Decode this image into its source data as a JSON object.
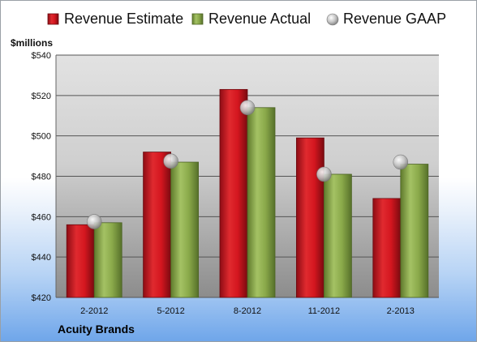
{
  "chart_data": {
    "type": "bar",
    "title": "",
    "ylabel": "$millions",
    "xlabel": "",
    "company": "Acuity Brands",
    "categories": [
      "2-2012",
      "5-2012",
      "8-2012",
      "11-2012",
      "2-2013"
    ],
    "series": [
      {
        "name": "Revenue Estimate",
        "kind": "bar",
        "color": "#c8141e",
        "values": [
          456,
          492,
          523,
          499,
          469
        ]
      },
      {
        "name": "Revenue Actual",
        "kind": "bar",
        "color": "#8aa94a",
        "values": [
          457,
          487,
          514,
          481,
          486
        ]
      },
      {
        "name": "Revenue GAAP",
        "kind": "marker",
        "color": "#b8b8b8",
        "values": [
          457.5,
          487.5,
          514,
          481,
          487
        ]
      }
    ],
    "ylim": [
      420,
      540
    ],
    "yticks": [
      420,
      440,
      460,
      480,
      500,
      520,
      540
    ],
    "ytick_labels": [
      "$420",
      "$440",
      "$460",
      "$480",
      "$500",
      "$520",
      "$540"
    ],
    "grid": true,
    "legend_position": "top"
  }
}
